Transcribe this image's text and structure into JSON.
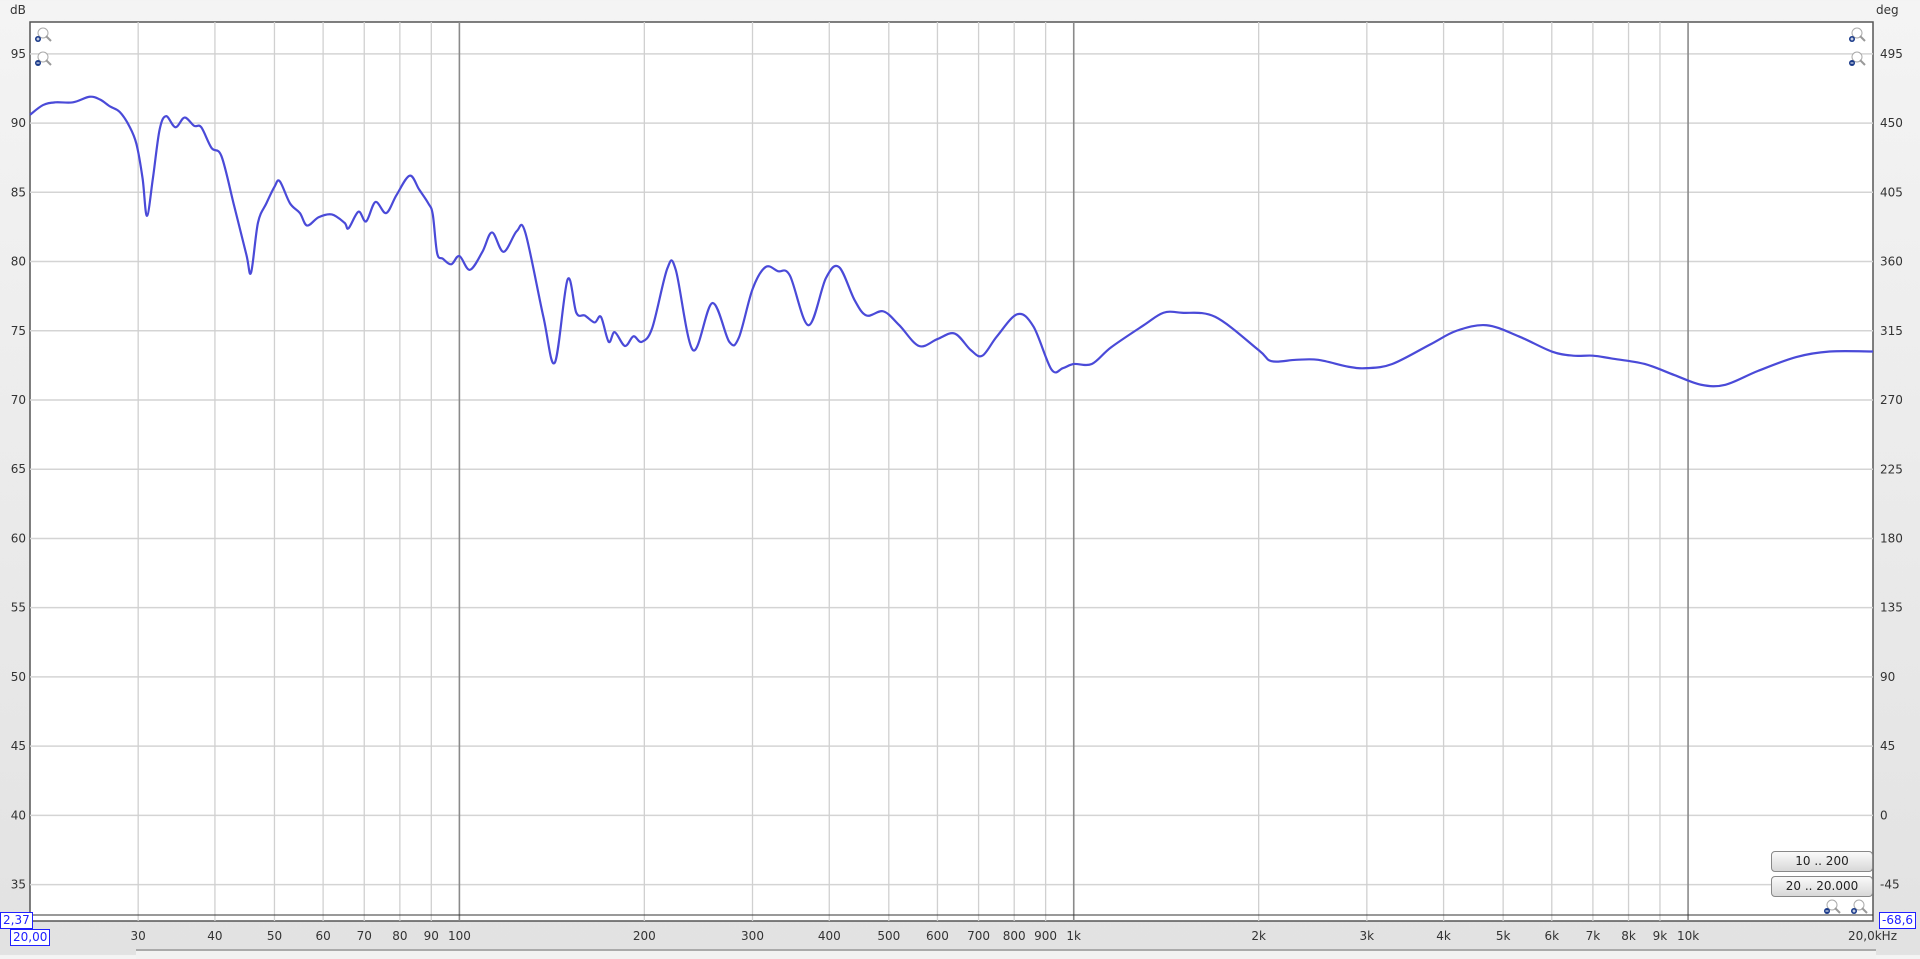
{
  "chart_data": {
    "type": "line",
    "title": "",
    "xlabel": "",
    "ylabel": "dB",
    "y2label": "deg",
    "x_unit_label": "20,0kHz",
    "xscale": "log",
    "xlim": [
      20,
      20000
    ],
    "ylim": [
      32.37,
      97.3
    ],
    "y2lim": [
      -68.6,
      515.7
    ],
    "grid": true,
    "legend": "none",
    "line_color": "#4a4ad8",
    "x_ticks": [
      {
        "v": 30,
        "label": "30"
      },
      {
        "v": 40,
        "label": "40"
      },
      {
        "v": 50,
        "label": "50"
      },
      {
        "v": 60,
        "label": "60"
      },
      {
        "v": 70,
        "label": "70"
      },
      {
        "v": 80,
        "label": "80"
      },
      {
        "v": 90,
        "label": "90"
      },
      {
        "v": 100,
        "label": "100",
        "major": true
      },
      {
        "v": 200,
        "label": "200"
      },
      {
        "v": 300,
        "label": "300"
      },
      {
        "v": 400,
        "label": "400"
      },
      {
        "v": 500,
        "label": "500"
      },
      {
        "v": 600,
        "label": "600"
      },
      {
        "v": 700,
        "label": "700"
      },
      {
        "v": 800,
        "label": "800"
      },
      {
        "v": 900,
        "label": "900"
      },
      {
        "v": 1000,
        "label": "1k",
        "major": true
      },
      {
        "v": 2000,
        "label": "2k"
      },
      {
        "v": 3000,
        "label": "3k"
      },
      {
        "v": 4000,
        "label": "4k"
      },
      {
        "v": 5000,
        "label": "5k"
      },
      {
        "v": 6000,
        "label": "6k"
      },
      {
        "v": 7000,
        "label": "7k"
      },
      {
        "v": 8000,
        "label": "8k"
      },
      {
        "v": 9000,
        "label": "9k"
      },
      {
        "v": 10000,
        "label": "10k",
        "major": true
      }
    ],
    "y_ticks": [
      35,
      40,
      45,
      50,
      55,
      60,
      65,
      70,
      75,
      80,
      85,
      90,
      95
    ],
    "y2_ticks": [
      -45,
      0,
      45,
      90,
      135,
      180,
      225,
      270,
      315,
      360,
      405,
      450,
      495
    ],
    "series": [
      {
        "x": [
          20,
          21,
          22,
          23.5,
          25,
          26,
          27,
          28,
          29,
          29.8,
          30.5,
          31,
          31.7,
          32.5,
          33.3,
          34.5,
          35.7,
          37,
          38,
          39.5,
          41,
          43,
          45,
          45.8,
          47,
          48.5,
          50,
          51,
          53,
          55,
          56.5,
          59,
          62,
          65,
          66,
          68.5,
          70.5,
          73,
          76,
          79,
          83,
          86,
          89,
          90.5,
          92,
          94,
          97,
          100,
          104,
          109,
          113,
          118,
          124,
          128,
          137,
          143,
          150,
          155,
          160,
          166,
          170,
          175,
          179,
          186,
          192,
          198,
          206,
          218,
          225,
          240,
          258,
          275,
          285,
          300,
          315,
          330,
          345,
          370,
          395,
          415,
          440,
          460,
          490,
          520,
          560,
          600,
          640,
          680,
          710,
          750,
          810,
          860,
          920,
          960,
          1000,
          1070,
          1150,
          1300,
          1400,
          1500,
          1700,
          2000,
          2100,
          2300,
          2500,
          2800,
          3000,
          3300,
          3800,
          4200,
          4700,
          5300,
          6000,
          6500,
          7000,
          7500,
          8500,
          9500,
          10500,
          11500,
          13000,
          15000,
          17000,
          20000
        ],
        "y": [
          90.6,
          91.3,
          91.5,
          91.5,
          91.9,
          91.7,
          91.2,
          90.8,
          89.8,
          88.5,
          86,
          83.3,
          86,
          89.5,
          90.5,
          89.7,
          90.4,
          89.8,
          89.7,
          88.2,
          87.6,
          84,
          80.5,
          79.2,
          82.8,
          84.2,
          85.4,
          85.8,
          84.2,
          83.5,
          82.6,
          83.2,
          83.4,
          82.8,
          82.4,
          83.6,
          82.9,
          84.3,
          83.5,
          84.8,
          86.2,
          85.2,
          84.2,
          83.4,
          80.6,
          80.2,
          79.8,
          80.4,
          79.4,
          80.7,
          82.1,
          80.7,
          82.2,
          82.1,
          76,
          72.7,
          78.7,
          76.3,
          76.1,
          75.6,
          76,
          74.2,
          74.9,
          73.9,
          74.6,
          74.2,
          75.2,
          79.5,
          79.4,
          73.6,
          77,
          74.2,
          74.5,
          78,
          79.6,
          79.3,
          79,
          75.4,
          78.8,
          79.6,
          77.2,
          76.1,
          76.4,
          75.4,
          73.9,
          74.4,
          74.8,
          73.6,
          73.2,
          74.6,
          76.2,
          75.3,
          72.2,
          72.3,
          72.6,
          72.6,
          73.8,
          75.4,
          76.3,
          76.3,
          76,
          73.6,
          72.8,
          72.9,
          72.9,
          72.4,
          72.3,
          72.6,
          74,
          75,
          75.4,
          74.6,
          73.5,
          73.2,
          73.2,
          73,
          72.6,
          71.8,
          71.1,
          71.1,
          72.1,
          73.1,
          73.5,
          73.5
        ]
      }
    ]
  },
  "controls": {
    "range_button_1": "10 .. 200",
    "range_button_2": "20 .. 20.000",
    "cursor_y_left": "2,37",
    "cursor_x": "20,00",
    "cursor_y_right": "-68,6"
  },
  "icons": {
    "zoom_in": "zoom-in-icon",
    "zoom_out": "zoom-out-icon"
  }
}
